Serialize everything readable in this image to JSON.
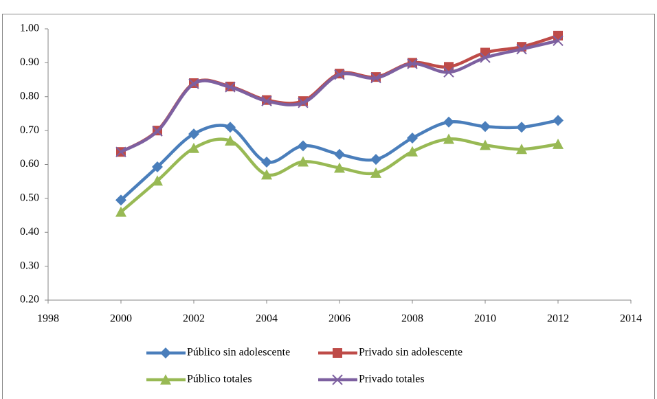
{
  "chart_data": {
    "type": "line",
    "x": [
      2000,
      2001,
      2002,
      2003,
      2004,
      2005,
      2006,
      2007,
      2008,
      2009,
      2010,
      2011,
      2012
    ],
    "xlim": [
      1998,
      2014
    ],
    "xticks": [
      1998,
      2000,
      2002,
      2004,
      2006,
      2008,
      2010,
      2012,
      2014
    ],
    "ylim": [
      0.2,
      1.0
    ],
    "yticks": [
      {
        "value": 0.2,
        "label": "0.20"
      },
      {
        "value": 0.3,
        "label": "0.30"
      },
      {
        "value": 0.4,
        "label": "0.40"
      },
      {
        "value": 0.5,
        "label": "0.50"
      },
      {
        "value": 0.6,
        "label": "0.60"
      },
      {
        "value": 0.7,
        "label": "0.70"
      },
      {
        "value": 0.8,
        "label": "0.80"
      },
      {
        "value": 0.9,
        "label": "0.90"
      },
      {
        "value": 1.0,
        "label": "1.00"
      }
    ],
    "grid": false,
    "smooth": true,
    "legend": "bottom",
    "series": [
      {
        "name": "Público sin adolescente",
        "color": "#4a7ebb",
        "marker": "diamond",
        "values": [
          0.495,
          0.593,
          0.69,
          0.71,
          0.607,
          0.655,
          0.63,
          0.615,
          0.678,
          0.725,
          0.712,
          0.71,
          0.73
        ]
      },
      {
        "name": "Privado sin adolescente",
        "color": "#be4b48",
        "marker": "square",
        "values": [
          0.637,
          0.7,
          0.84,
          0.83,
          0.79,
          0.787,
          0.868,
          0.858,
          0.9,
          0.888,
          0.93,
          0.947,
          0.98
        ]
      },
      {
        "name": "Público totales",
        "color": "#98b954",
        "marker": "triangle",
        "values": [
          0.46,
          0.552,
          0.648,
          0.67,
          0.57,
          0.608,
          0.59,
          0.575,
          0.638,
          0.675,
          0.657,
          0.645,
          0.66
        ]
      },
      {
        "name": "Privado totales",
        "color": "#7d60a0",
        "marker": "x",
        "values": [
          0.637,
          0.698,
          0.838,
          0.828,
          0.787,
          0.782,
          0.865,
          0.855,
          0.897,
          0.872,
          0.915,
          0.94,
          0.965
        ]
      }
    ]
  }
}
